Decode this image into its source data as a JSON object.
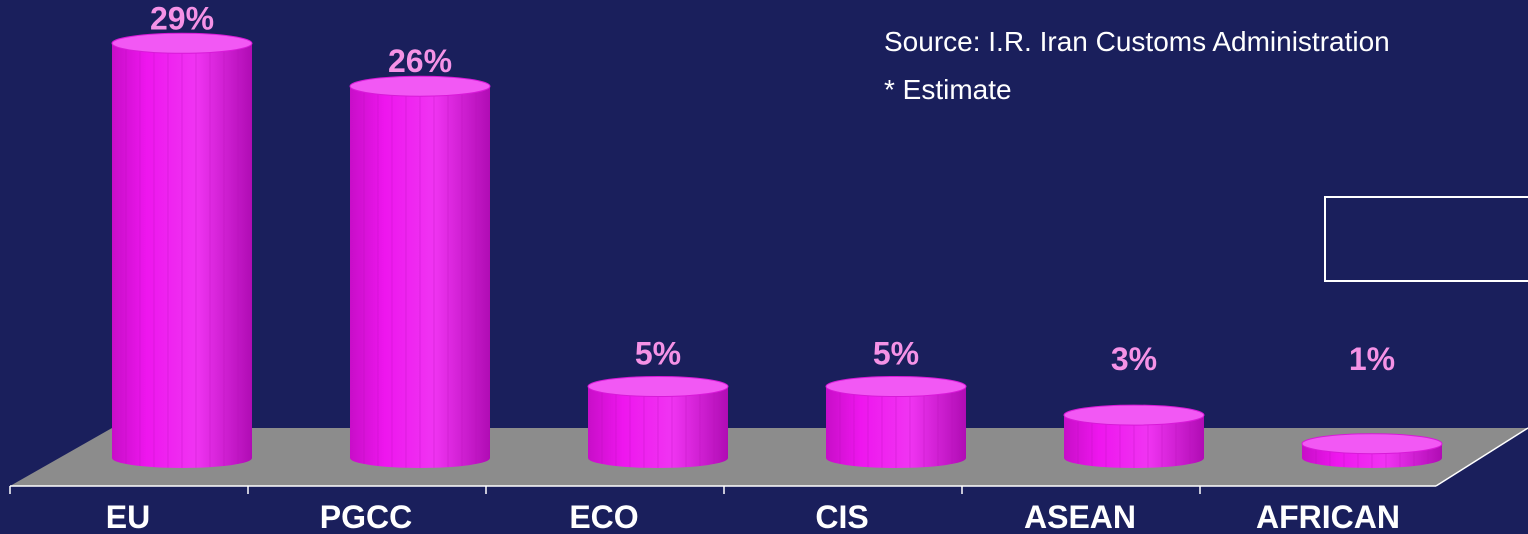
{
  "source_note": {
    "line1": "Source: I.R. Iran Customs Administration",
    "line2": "* Estimate"
  },
  "colors": {
    "background": "#1a1f5c",
    "floor": "#8c8c8c",
    "bar_body": "#ee16ee",
    "bar_top": "#f258f4",
    "value_label": "#f592e6",
    "category_label": "#ffffff"
  },
  "chart_data": {
    "type": "bar",
    "categories": [
      "EU",
      "PGCC",
      "ECO",
      "CIS",
      "ASEAN",
      "AFRICAN"
    ],
    "values": [
      29,
      26,
      5,
      5,
      3,
      1
    ],
    "value_labels": [
      "29%",
      "26%",
      "5%",
      "5%",
      "3%",
      "1%"
    ],
    "unit": "%",
    "style": "3d-cylinder",
    "ylim": [
      0,
      30
    ],
    "grid": false
  }
}
